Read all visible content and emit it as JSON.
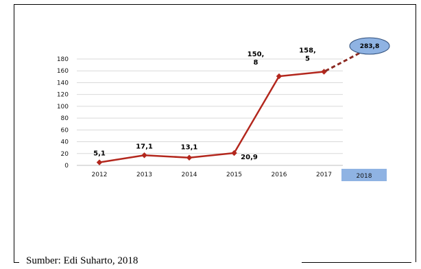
{
  "source_text": "Sumber: Edi Suharto, 2018",
  "colors": {
    "line": "#b3271d",
    "projection": "#8c2a22",
    "bubble_fill": "#8fb3e3",
    "bubble_stroke": "#2f4e7a",
    "highlight_box": "#8fb3e3",
    "grid": "#d9d9d9"
  },
  "chart_data": {
    "type": "line",
    "title": "",
    "xlabel": "",
    "ylabel": "",
    "ylim": [
      0,
      180
    ],
    "yticks": [
      "0",
      "20",
      "40",
      "60",
      "80",
      "100",
      "120",
      "140",
      "160",
      "180"
    ],
    "categories": [
      "2012",
      "2013",
      "2014",
      "2015",
      "2016",
      "2017"
    ],
    "values": [
      5.1,
      17.1,
      13.1,
      20.9,
      150.8,
      158.5
    ],
    "data_labels": [
      "5,1",
      "17,1",
      "13,1",
      "20,9",
      "150,|8",
      "158,|5"
    ],
    "projection": {
      "category": "2018",
      "value": 283.8,
      "label": "283,8",
      "style": "dashed"
    },
    "grid": true,
    "legend": "none"
  }
}
